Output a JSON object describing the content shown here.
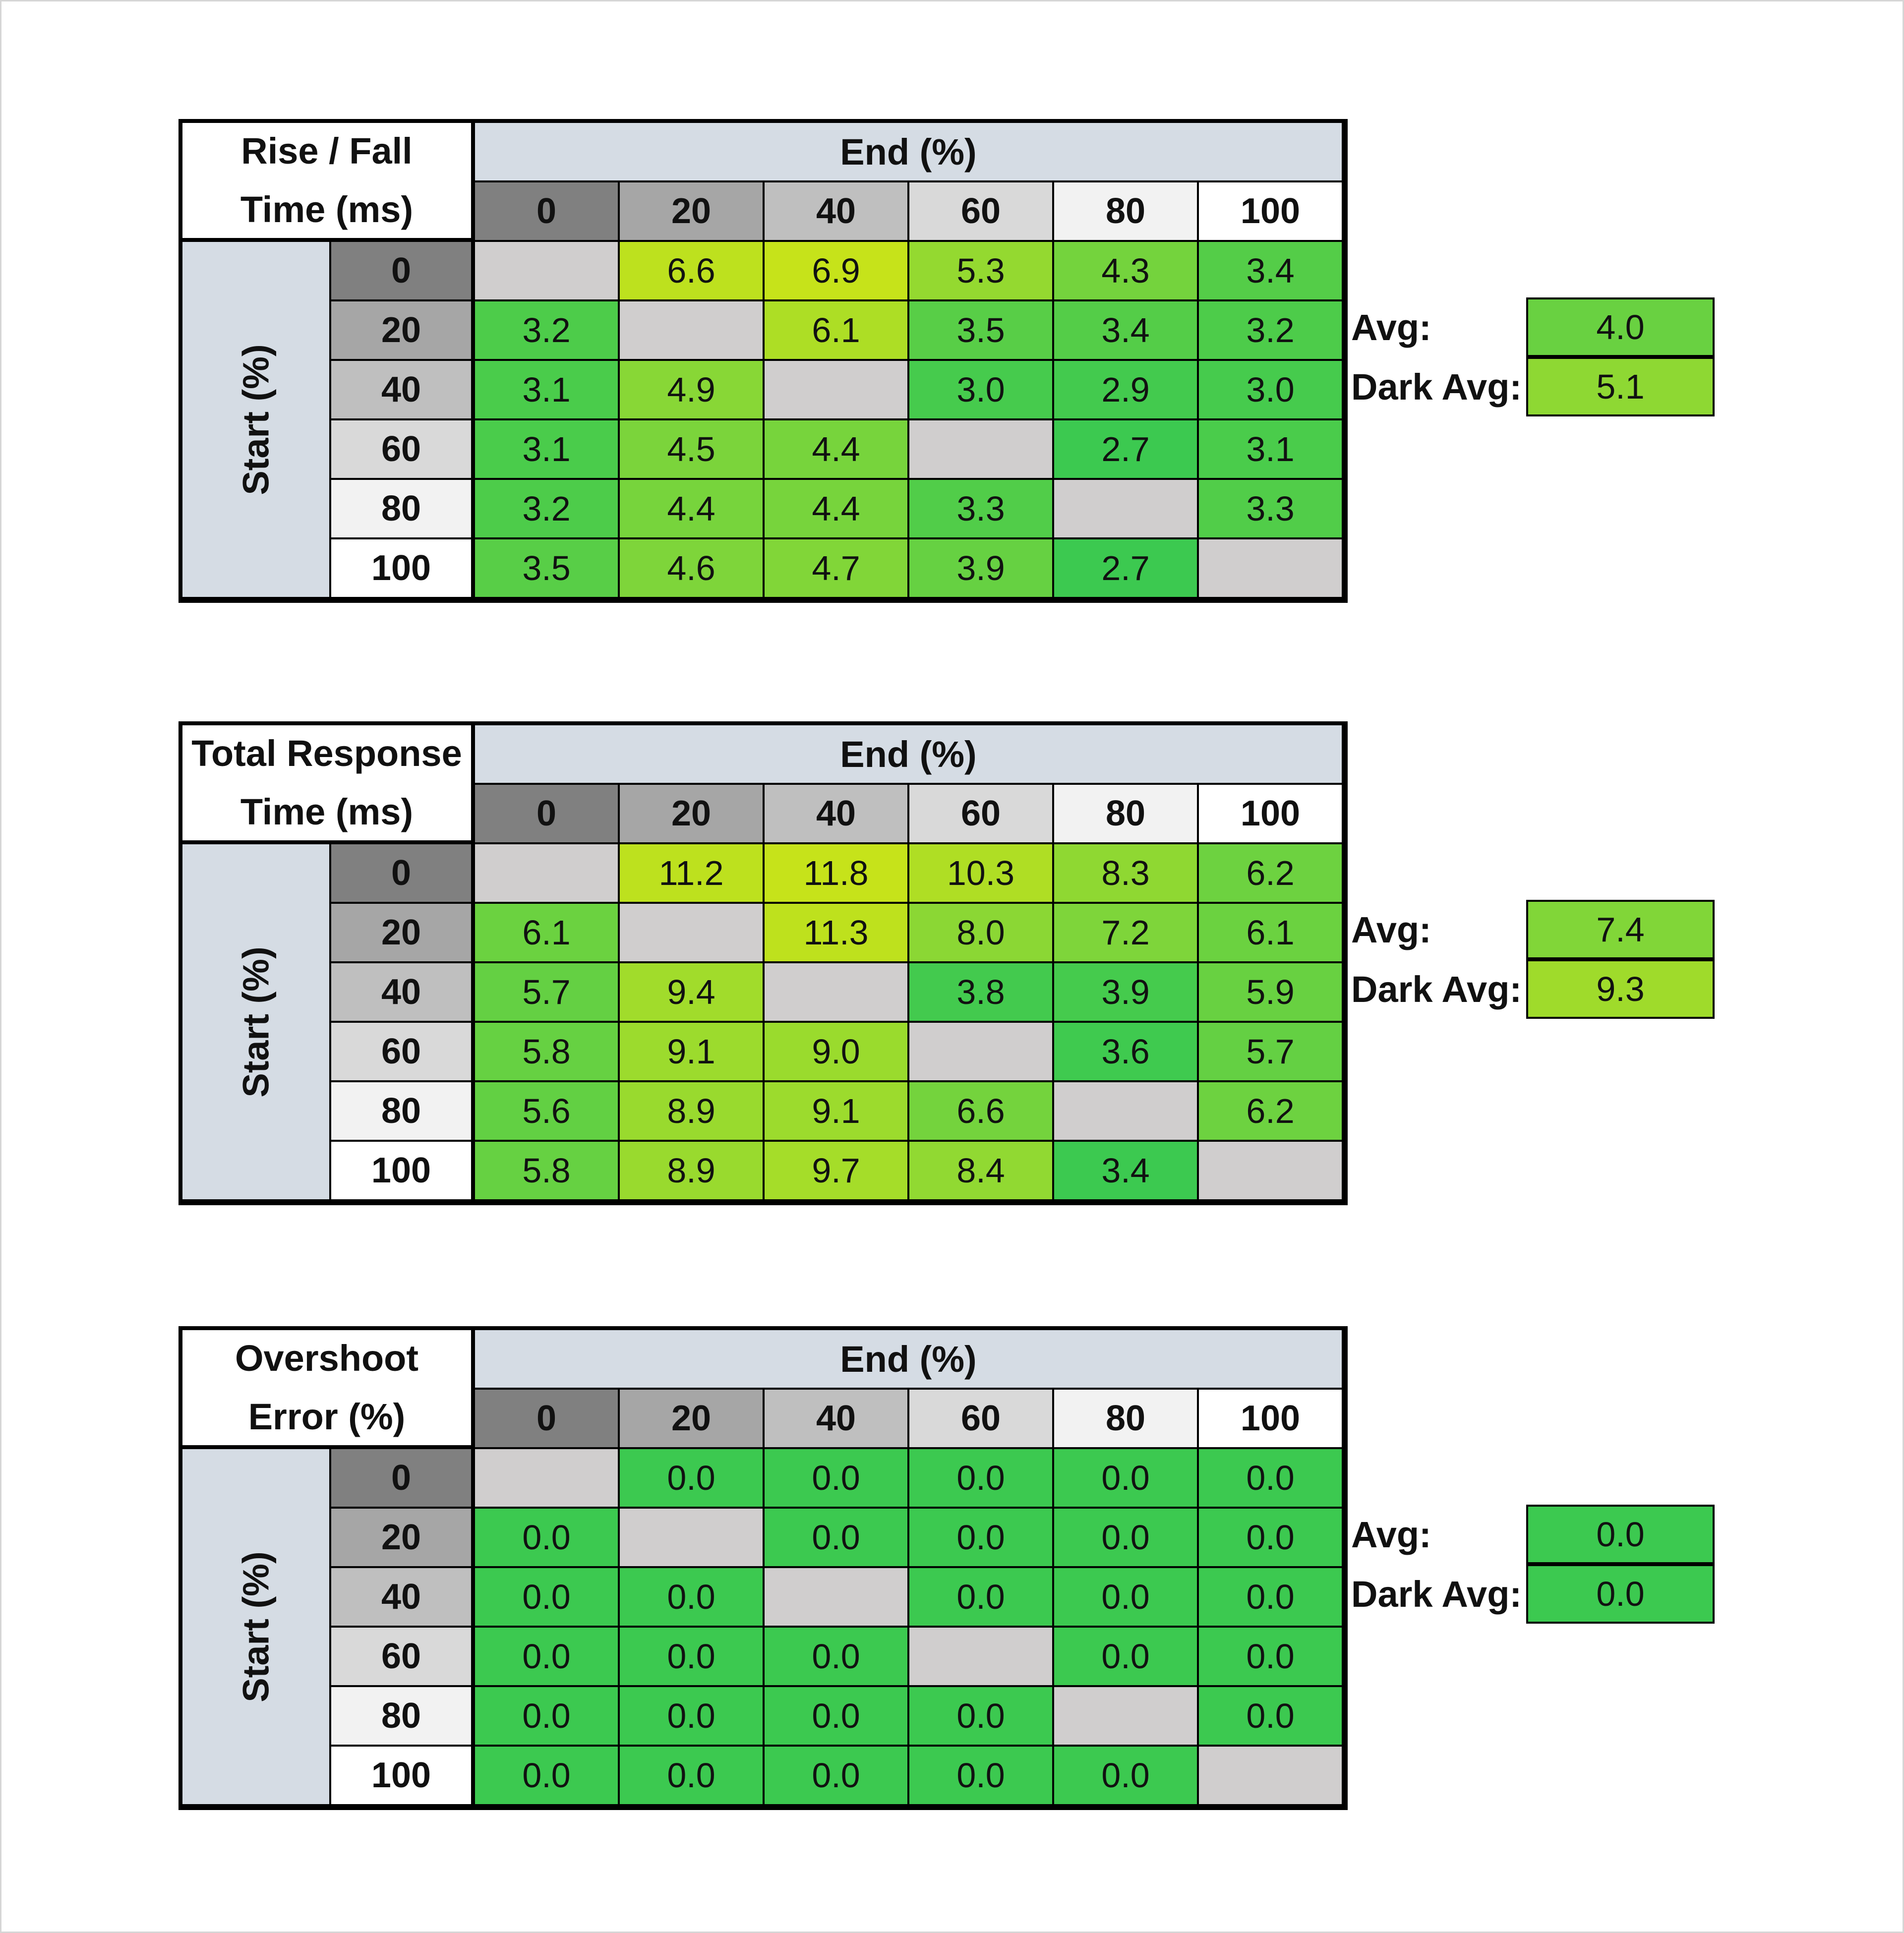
{
  "chart_data": [
    {
      "type": "heatmap",
      "title_lines": [
        "Rise / Fall",
        "Time (ms)"
      ],
      "xlabel": "End (%)",
      "ylabel": "Start (%)",
      "columns": [
        "0",
        "20",
        "40",
        "60",
        "80",
        "100"
      ],
      "rows": [
        "0",
        "20",
        "40",
        "60",
        "80",
        "100"
      ],
      "values": [
        [
          null,
          6.6,
          6.9,
          5.3,
          4.3,
          3.4
        ],
        [
          3.2,
          null,
          6.1,
          3.5,
          3.4,
          3.2
        ],
        [
          3.1,
          4.9,
          null,
          3.0,
          2.9,
          3.0
        ],
        [
          3.1,
          4.5,
          4.4,
          null,
          2.7,
          3.1
        ],
        [
          3.2,
          4.4,
          4.4,
          3.3,
          null,
          3.3
        ],
        [
          3.5,
          4.6,
          4.7,
          3.9,
          2.7,
          null
        ]
      ],
      "avg_label": "Avg:",
      "avg": 4.0,
      "dark_avg_label": "Dark Avg:",
      "dark_avg": 5.1
    },
    {
      "type": "heatmap",
      "title_lines": [
        "Total Response",
        "Time (ms)"
      ],
      "xlabel": "End (%)",
      "ylabel": "Start (%)",
      "columns": [
        "0",
        "20",
        "40",
        "60",
        "80",
        "100"
      ],
      "rows": [
        "0",
        "20",
        "40",
        "60",
        "80",
        "100"
      ],
      "values": [
        [
          null,
          11.2,
          11.8,
          10.3,
          8.3,
          6.2
        ],
        [
          6.1,
          null,
          11.3,
          8.0,
          7.2,
          6.1
        ],
        [
          5.7,
          9.4,
          null,
          3.8,
          3.9,
          5.9
        ],
        [
          5.8,
          9.1,
          9.0,
          null,
          3.6,
          5.7
        ],
        [
          5.6,
          8.9,
          9.1,
          6.6,
          null,
          6.2
        ],
        [
          5.8,
          8.9,
          9.7,
          8.4,
          3.4,
          null
        ]
      ],
      "avg_label": "Avg:",
      "avg": 7.4,
      "dark_avg_label": "Dark Avg:",
      "dark_avg": 9.3
    },
    {
      "type": "heatmap",
      "title_lines": [
        "Overshoot",
        "Error (%)"
      ],
      "xlabel": "End (%)",
      "ylabel": "Start (%)",
      "columns": [
        "0",
        "20",
        "40",
        "60",
        "80",
        "100"
      ],
      "rows": [
        "0",
        "20",
        "40",
        "60",
        "80",
        "100"
      ],
      "values": [
        [
          null,
          0.0,
          0.0,
          0.0,
          0.0,
          0.0
        ],
        [
          0.0,
          null,
          0.0,
          0.0,
          0.0,
          0.0
        ],
        [
          0.0,
          0.0,
          null,
          0.0,
          0.0,
          0.0
        ],
        [
          0.0,
          0.0,
          0.0,
          null,
          0.0,
          0.0
        ],
        [
          0.0,
          0.0,
          0.0,
          0.0,
          null,
          0.0
        ],
        [
          0.0,
          0.0,
          0.0,
          0.0,
          0.0,
          null
        ]
      ],
      "avg_label": "Avg:",
      "avg": 0.0,
      "dark_avg_label": "Dark Avg:",
      "dark_avg": 0.0
    }
  ],
  "colors": {
    "header_blue": "#d5dce4",
    "empty_cell": "#d0cece",
    "green": "#3cc950",
    "light_green": "#7ed53a",
    "yellow_green": "#c6e31a",
    "header_shades": [
      "#808080",
      "#a6a6a6",
      "#bfbfbf",
      "#d9d9d9",
      "#f2f2f2",
      "#ffffff"
    ]
  }
}
